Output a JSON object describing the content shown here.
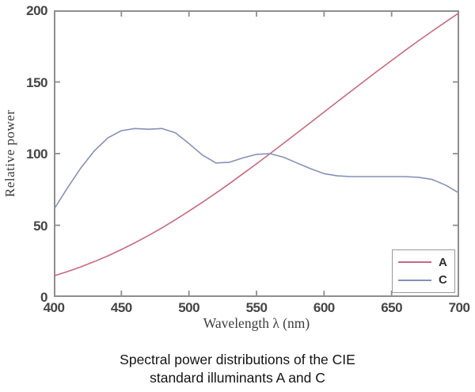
{
  "chart_data": {
    "type": "line",
    "title": "",
    "xlabel": "Wavelength λ (nm)",
    "ylabel": "Relative power",
    "xlim": [
      400,
      700
    ],
    "ylim": [
      0,
      200
    ],
    "x_ticks": [
      400,
      450,
      500,
      550,
      600,
      650,
      700
    ],
    "y_ticks": [
      0,
      50,
      100,
      150,
      200
    ],
    "grid": false,
    "legend_position": "lower-right",
    "x": [
      400,
      410,
      420,
      430,
      440,
      450,
      460,
      470,
      480,
      490,
      500,
      510,
      520,
      530,
      540,
      550,
      560,
      570,
      580,
      590,
      600,
      610,
      620,
      630,
      640,
      650,
      660,
      670,
      680,
      690,
      700
    ],
    "series": [
      {
        "name": "A",
        "color": "#c76a80",
        "values": [
          14.7,
          17.7,
          21.0,
          24.7,
          28.7,
          33.1,
          37.8,
          42.9,
          48.2,
          53.9,
          59.9,
          66.1,
          72.5,
          79.1,
          86.0,
          92.9,
          100.0,
          107.2,
          114.4,
          121.7,
          129.0,
          136.3,
          143.6,
          150.8,
          158.0,
          165.0,
          172.0,
          178.8,
          185.4,
          191.9,
          198.3
        ]
      },
      {
        "name": "C",
        "color": "#8690ba",
        "values": [
          61.0,
          76.0,
          90.0,
          102.0,
          111.0,
          116.0,
          117.5,
          117.0,
          117.5,
          114.5,
          107.0,
          99.0,
          93.5,
          94.0,
          97.0,
          99.5,
          100.0,
          97.5,
          93.5,
          89.5,
          86.0,
          84.5,
          84.0,
          84.0,
          84.0,
          84.0,
          84.0,
          83.5,
          82.0,
          78.0,
          72.5
        ]
      }
    ]
  },
  "caption": {
    "line1": "Spectral power distributions of the CIE",
    "line2": "standard illuminants A and C"
  },
  "colors": {
    "axis": "#8e8e8e",
    "tick_label": "#454545",
    "axis_title": "#3d3d3d",
    "legend_border": "#9a9a9a",
    "caption": "#141414",
    "background": "#ffffff"
  }
}
